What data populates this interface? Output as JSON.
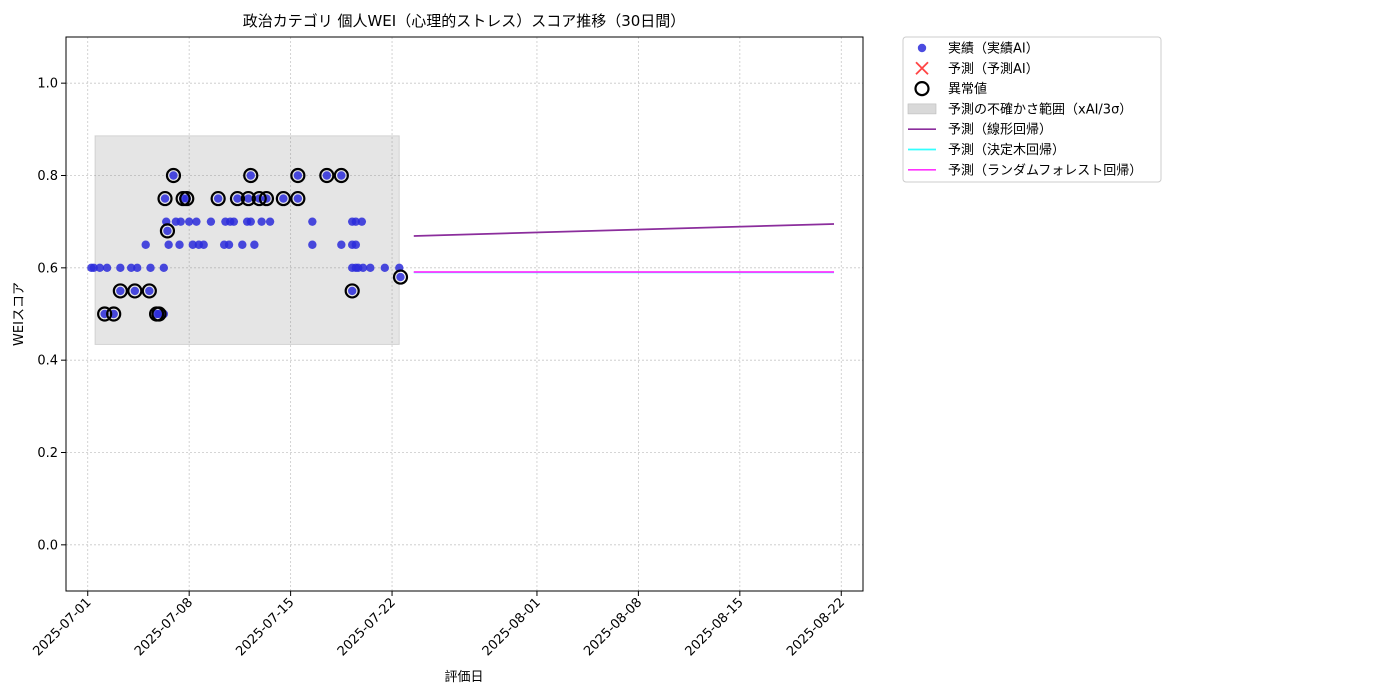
{
  "chart_data": {
    "type": "scatter",
    "title": "政治カテゴリ 個人WEI（心理的ストレス）スコア推移（30日間）",
    "xlabel": "評価日",
    "ylabel": "WEIスコア",
    "xlim": [
      "2025-06-29T12:00",
      "2025-08-23T12:00"
    ],
    "ylim": [
      -0.1,
      1.1
    ],
    "yticks": [
      0.0,
      0.2,
      0.4,
      0.6,
      0.8,
      1.0
    ],
    "ytick_labels": [
      "0.0",
      "0.2",
      "0.4",
      "0.6",
      "0.8",
      "1.0"
    ],
    "xticks": [
      "2025-07-01",
      "2025-07-08",
      "2025-07-15",
      "2025-07-22",
      "2025-08-01",
      "2025-08-08",
      "2025-08-15",
      "2025-08-22"
    ],
    "grid": true,
    "legend_position": "outside-top-right",
    "legend": [
      {
        "label": "実績（実績AI）",
        "kind": "dot",
        "color": "#2b2bdb"
      },
      {
        "label": "予測（予測AI）",
        "kind": "cross",
        "color": "#ff4444"
      },
      {
        "label": "異常値",
        "kind": "ring",
        "color": "#000000"
      },
      {
        "label": "予測の不確かさ範囲（xAI/3σ）",
        "kind": "band",
        "color": "#d9d9d9"
      },
      {
        "label": "予測（線形回帰）",
        "kind": "line",
        "color": "#8b2d9c"
      },
      {
        "label": "予測（決定木回帰）",
        "kind": "line",
        "color": "#33ffff"
      },
      {
        "label": "予測（ランダムフォレスト回帰）",
        "kind": "line",
        "color": "#ff33ff"
      }
    ],
    "actual": {
      "name": "実績（実績AI）",
      "color": "#2b2bdb",
      "points": [
        [
          "2025-07-01T06:00",
          0.6
        ],
        [
          "2025-07-01T10:00",
          0.6
        ],
        [
          "2025-07-01T20:00",
          0.6
        ],
        [
          "2025-07-02T04:00",
          0.5
        ],
        [
          "2025-07-02T08:00",
          0.6
        ],
        [
          "2025-07-02T19:00",
          0.5
        ],
        [
          "2025-07-03T06:00",
          0.55
        ],
        [
          "2025-07-03T06:00",
          0.6
        ],
        [
          "2025-07-04T00:00",
          0.6
        ],
        [
          "2025-07-04T06:00",
          0.55
        ],
        [
          "2025-07-04T10:00",
          0.6
        ],
        [
          "2025-07-05T00:00",
          0.65
        ],
        [
          "2025-07-05T06:00",
          0.55
        ],
        [
          "2025-07-05T08:00",
          0.6
        ],
        [
          "2025-07-05T18:00",
          0.5
        ],
        [
          "2025-07-05T22:00",
          0.5
        ],
        [
          "2025-07-06T06:00",
          0.6
        ],
        [
          "2025-07-06T06:00",
          0.5
        ],
        [
          "2025-07-06T08:00",
          0.75
        ],
        [
          "2025-07-06T10:00",
          0.7
        ],
        [
          "2025-07-06T12:00",
          0.68
        ],
        [
          "2025-07-06T14:00",
          0.65
        ],
        [
          "2025-07-06T22:00",
          0.8
        ],
        [
          "2025-07-07T02:00",
          0.7
        ],
        [
          "2025-07-07T08:00",
          0.65
        ],
        [
          "2025-07-07T10:00",
          0.7
        ],
        [
          "2025-07-07T14:00",
          0.75
        ],
        [
          "2025-07-07T20:00",
          0.75
        ],
        [
          "2025-07-08T00:00",
          0.7
        ],
        [
          "2025-07-08T06:00",
          0.65
        ],
        [
          "2025-07-08T12:00",
          0.7
        ],
        [
          "2025-07-08T16:00",
          0.65
        ],
        [
          "2025-07-09T00:00",
          0.65
        ],
        [
          "2025-07-09T12:00",
          0.7
        ],
        [
          "2025-07-10T00:00",
          0.75
        ],
        [
          "2025-07-10T10:00",
          0.65
        ],
        [
          "2025-07-10T12:00",
          0.7
        ],
        [
          "2025-07-10T18:00",
          0.65
        ],
        [
          "2025-07-10T20:00",
          0.7
        ],
        [
          "2025-07-11T02:00",
          0.7
        ],
        [
          "2025-07-11T08:00",
          0.75
        ],
        [
          "2025-07-11T16:00",
          0.65
        ],
        [
          "2025-07-12T00:00",
          0.7
        ],
        [
          "2025-07-12T02:00",
          0.75
        ],
        [
          "2025-07-12T06:00",
          0.8
        ],
        [
          "2025-07-12T06:00",
          0.7
        ],
        [
          "2025-07-12T12:00",
          0.65
        ],
        [
          "2025-07-12T20:00",
          0.75
        ],
        [
          "2025-07-13T00:00",
          0.7
        ],
        [
          "2025-07-13T08:00",
          0.75
        ],
        [
          "2025-07-13T14:00",
          0.7
        ],
        [
          "2025-07-14T12:00",
          0.75
        ],
        [
          "2025-07-15T12:00",
          0.8
        ],
        [
          "2025-07-15T12:00",
          0.75
        ],
        [
          "2025-07-16T12:00",
          0.7
        ],
        [
          "2025-07-16T12:00",
          0.65
        ],
        [
          "2025-07-17T12:00",
          0.8
        ],
        [
          "2025-07-18T12:00",
          0.65
        ],
        [
          "2025-07-18T12:00",
          0.8
        ],
        [
          "2025-07-19T06:00",
          0.7
        ],
        [
          "2025-07-19T06:00",
          0.65
        ],
        [
          "2025-07-19T06:00",
          0.6
        ],
        [
          "2025-07-19T06:00",
          0.55
        ],
        [
          "2025-07-19T12:00",
          0.7
        ],
        [
          "2025-07-19T12:00",
          0.65
        ],
        [
          "2025-07-19T12:00",
          0.6
        ],
        [
          "2025-07-19T16:00",
          0.6
        ],
        [
          "2025-07-19T22:00",
          0.7
        ],
        [
          "2025-07-20T00:00",
          0.6
        ],
        [
          "2025-07-20T12:00",
          0.6
        ],
        [
          "2025-07-21T12:00",
          0.6
        ],
        [
          "2025-07-22T12:00",
          0.6
        ],
        [
          "2025-07-22T14:00",
          0.58
        ]
      ]
    },
    "anomalies": {
      "name": "異常値",
      "points": [
        [
          "2025-07-02T04:00",
          0.5
        ],
        [
          "2025-07-02T19:00",
          0.5
        ],
        [
          "2025-07-03T06:00",
          0.55
        ],
        [
          "2025-07-04T06:00",
          0.55
        ],
        [
          "2025-07-05T06:00",
          0.55
        ],
        [
          "2025-07-05T18:00",
          0.5
        ],
        [
          "2025-07-05T22:00",
          0.5
        ],
        [
          "2025-07-06T08:00",
          0.75
        ],
        [
          "2025-07-06T12:00",
          0.68
        ],
        [
          "2025-07-06T22:00",
          0.8
        ],
        [
          "2025-07-07T14:00",
          0.75
        ],
        [
          "2025-07-07T20:00",
          0.75
        ],
        [
          "2025-07-10T00:00",
          0.75
        ],
        [
          "2025-07-11T08:00",
          0.75
        ],
        [
          "2025-07-12T02:00",
          0.75
        ],
        [
          "2025-07-12T06:00",
          0.8
        ],
        [
          "2025-07-12T20:00",
          0.75
        ],
        [
          "2025-07-13T08:00",
          0.75
        ],
        [
          "2025-07-14T12:00",
          0.75
        ],
        [
          "2025-07-15T12:00",
          0.8
        ],
        [
          "2025-07-15T12:00",
          0.75
        ],
        [
          "2025-07-17T12:00",
          0.8
        ],
        [
          "2025-07-18T12:00",
          0.8
        ],
        [
          "2025-07-19T06:00",
          0.55
        ],
        [
          "2025-07-22T14:00",
          0.58
        ]
      ]
    },
    "uncertainty_band": {
      "name": "予測の不確かさ範囲（xAI/3σ）",
      "x": [
        "2025-07-01T12:00",
        "2025-07-22T12:00"
      ],
      "y": [
        0.434,
        0.886
      ]
    },
    "forecast_lines": [
      {
        "name": "予測（線形回帰）",
        "color": "#8b2d9c",
        "x": [
          "2025-07-23T12:00",
          "2025-08-21T12:00"
        ],
        "y": [
          0.669,
          0.695
        ]
      },
      {
        "name": "予測（決定木回帰）",
        "color": "#33ffff",
        "x": [
          "2025-07-23T12:00",
          "2025-08-21T12:00"
        ],
        "y": [
          0.59,
          0.59
        ]
      },
      {
        "name": "予測（ランダムフォレスト回帰）",
        "color": "#ff33ff",
        "x": [
          "2025-07-23T12:00",
          "2025-08-21T12:00"
        ],
        "y": [
          0.591,
          0.591
        ]
      }
    ]
  }
}
